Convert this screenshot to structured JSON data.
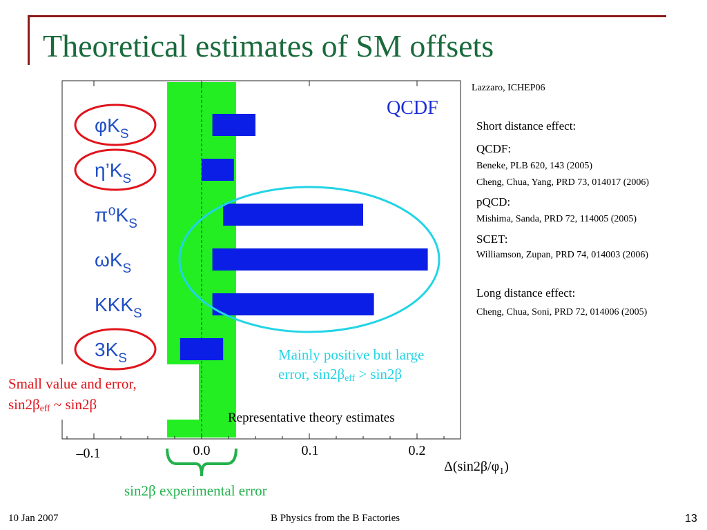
{
  "slide": {
    "title": "Theoretical estimates of SM offsets",
    "source_note": "Lazzaro, ICHEP06",
    "footer_date": "10 Jan 2007",
    "footer_title": "B Physics from the B Factories",
    "page_number": "13"
  },
  "references": [
    {
      "text": "Short distance effect:",
      "style": "heading"
    },
    {
      "text": "QCDF:",
      "style": "sub"
    },
    {
      "text": "Beneke, PLB 620, 143 (2005)",
      "style": "small"
    },
    {
      "text": "Cheng, Chua, Yang, PRD 73, 014017 (2006)",
      "style": "small"
    },
    {
      "text": "pQCD:",
      "style": "sub"
    },
    {
      "text": "Mishima, Sanda, PRD 72, 114005 (2005)",
      "style": "small"
    },
    {
      "text": "SCET:",
      "style": "sub"
    },
    {
      "text": "Williamson, Zupan, PRD 74, 014003 (2006)",
      "style": "small"
    },
    {
      "text": "Long distance effect:",
      "style": "heading"
    },
    {
      "text": "Cheng, Chua, Soni, PRD 72, 014006 (2005)",
      "style": "small"
    }
  ],
  "annotations": {
    "cyan_line1": "Mainly positive but large",
    "cyan_line2_prefix": "error, sin2β",
    "cyan_line2_sub": "eff",
    "cyan_line2_suffix": " > sin2β",
    "red_line1": "Small value and error,",
    "red_line2_prefix": "sin2β",
    "red_line2_sub": "eff",
    "red_line2_suffix": " ~ sin2β",
    "green_caption": "sin2β experimental error"
  },
  "colors": {
    "title": "#1a6b3c",
    "bars": "#0a1ee6",
    "green_band": "#22ee22",
    "cyan": "#22d4e6",
    "red": "#e0141b",
    "green_text": "#22b14c",
    "channel_labels": "#1f4fc4"
  },
  "chart_data": {
    "type": "bar",
    "orientation": "horizontal",
    "title": "QCDF",
    "inner_caption": "Representative theory estimates",
    "xlabel": "Δ(sin2β/φ1)",
    "xlim": [
      -0.13,
      0.24
    ],
    "xticks": [
      -0.1,
      0.0,
      0.1,
      0.2
    ],
    "xtick_labels": [
      "–0.1",
      "0.0",
      "0.1",
      "0.2"
    ],
    "reference_line": 0.0,
    "experimental_error_band": [
      -0.032,
      0.032
    ],
    "categories": [
      "φK_S",
      "η'K_S",
      "π⁰K_S",
      "ωK_S",
      "KKK_S",
      "3K_S"
    ],
    "category_labels": [
      {
        "main": "φK",
        "sub": "S"
      },
      {
        "main": "η’K",
        "sub": "S"
      },
      {
        "main": "π⁰K",
        "sub": "S"
      },
      {
        "main": "ωK",
        "sub": "S"
      },
      {
        "main": "KKK",
        "sub": "S"
      },
      {
        "main": "3K",
        "sub": "S"
      }
    ],
    "ranges": [
      [
        0.01,
        0.05
      ],
      [
        0.0,
        0.03
      ],
      [
        0.02,
        0.15
      ],
      [
        0.01,
        0.21
      ],
      [
        0.01,
        0.16
      ],
      [
        -0.02,
        0.02
      ]
    ],
    "circled_red": [
      "φK_S",
      "η'K_S",
      "3K_S"
    ],
    "circled_cyan": [
      "π⁰K_S",
      "ωK_S",
      "KKK_S"
    ],
    "grid": false
  }
}
